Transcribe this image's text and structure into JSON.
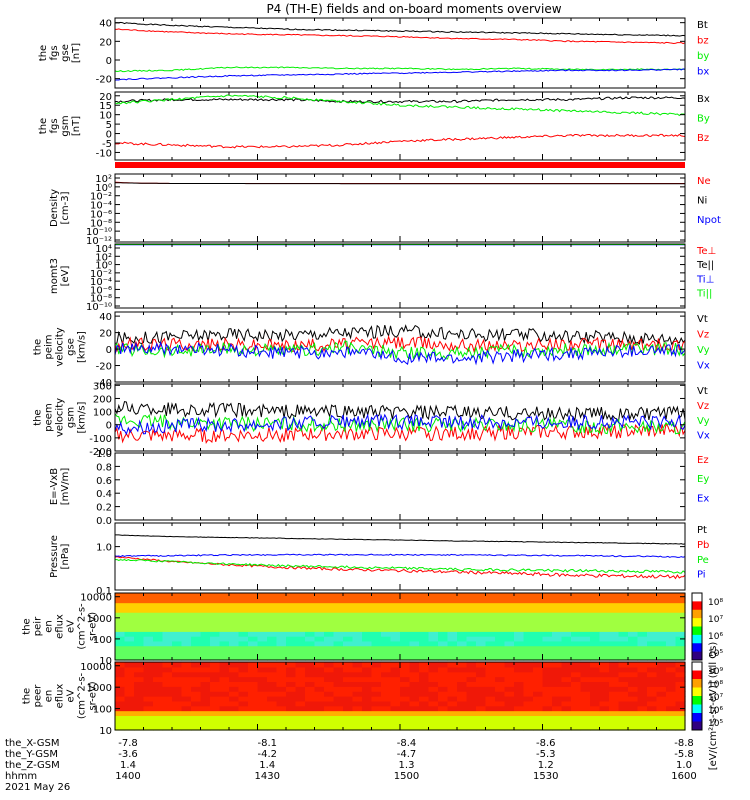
{
  "title": "P4 (TH-E) fields and on-board moments overview",
  "colors": {
    "black": "#000000",
    "red": "#ff0000",
    "green": "#00ee00",
    "blue": "#0000ff"
  },
  "chart_data": [
    {
      "id": "fgs_gse",
      "type": "line",
      "ylabel": [
        "the",
        "fgs",
        "gse",
        "[nT]"
      ],
      "ylim": [
        -30,
        45
      ],
      "yticks": [
        "40",
        "20",
        "0",
        "-20"
      ],
      "series": [
        {
          "name": "Bt",
          "color": "#000000",
          "x": [
            0,
            0.1,
            0.2,
            0.3,
            0.4,
            0.5,
            0.6,
            0.7,
            0.8,
            0.9,
            1
          ],
          "y": [
            40,
            37,
            35,
            33,
            32,
            31,
            30,
            29,
            28,
            27,
            26
          ]
        },
        {
          "name": "bz",
          "color": "#ff0000",
          "x": [
            0,
            0.1,
            0.2,
            0.3,
            0.4,
            0.5,
            0.6,
            0.7,
            0.8,
            0.9,
            1
          ],
          "y": [
            33,
            30,
            28,
            27,
            26,
            25,
            23,
            22,
            20,
            19,
            18
          ]
        },
        {
          "name": "by",
          "color": "#00ee00",
          "x": [
            0,
            0.1,
            0.2,
            0.3,
            0.4,
            0.5,
            0.6,
            0.7,
            0.8,
            0.9,
            1
          ],
          "y": [
            -12,
            -11,
            -8,
            -8,
            -9,
            -9,
            -10,
            -9,
            -10,
            -10,
            -10
          ]
        },
        {
          "name": "bx",
          "color": "#0000ff",
          "x": [
            0,
            0.1,
            0.2,
            0.3,
            0.4,
            0.5,
            0.6,
            0.7,
            0.8,
            0.9,
            1
          ],
          "y": [
            -21,
            -19,
            -17,
            -16,
            -15,
            -14,
            -13,
            -12,
            -11,
            -11,
            -10
          ]
        }
      ]
    },
    {
      "id": "fgs_gsm",
      "type": "line",
      "ylabel": [
        "the",
        "fgs",
        "gsm",
        "[nT]"
      ],
      "ylim": [
        -14,
        22
      ],
      "yticks": [
        "20",
        "15",
        "10",
        "5",
        "0",
        "-5",
        "-10"
      ],
      "series": [
        {
          "name": "Bx",
          "color": "#000000",
          "x": [
            0,
            0.1,
            0.2,
            0.3,
            0.4,
            0.5,
            0.6,
            0.7,
            0.8,
            0.9,
            1
          ],
          "y": [
            17,
            18,
            18,
            18,
            17,
            17,
            17,
            18,
            18,
            19,
            19
          ]
        },
        {
          "name": "By",
          "color": "#00ee00",
          "x": [
            0,
            0.1,
            0.2,
            0.3,
            0.4,
            0.5,
            0.6,
            0.7,
            0.8,
            0.9,
            1
          ],
          "y": [
            16,
            18,
            20,
            19,
            17,
            15,
            14,
            13,
            12,
            11,
            10
          ]
        },
        {
          "name": "Bz",
          "color": "#ff0000",
          "x": [
            0,
            0.1,
            0.2,
            0.3,
            0.4,
            0.5,
            0.6,
            0.7,
            0.8,
            0.9,
            1
          ],
          "y": [
            -5,
            -6,
            -7,
            -7,
            -6,
            -4,
            -3,
            -2,
            -1,
            -1,
            -1
          ]
        }
      ]
    },
    {
      "id": "density",
      "type": "line",
      "ylabel": [
        "Density",
        "[cm-3]"
      ],
      "ylim": [
        -12,
        2
      ],
      "yticks": [
        "10²",
        "10⁰",
        "10⁻²",
        "10⁻⁴",
        "10⁻⁶",
        "10⁻⁸",
        "10⁻¹⁰",
        "10⁻¹²"
      ],
      "series": [
        {
          "name": "Ne",
          "color": "#ff0000",
          "x": [
            0,
            0.02,
            0.05,
            0.1,
            0.5,
            1
          ],
          "y": [
            0.3,
            0.2,
            0.1,
            0.05,
            0.05,
            0.05
          ]
        },
        {
          "name": "Ni",
          "color": "#000000",
          "x": [
            0,
            0.05,
            0.1,
            0.5,
            1
          ],
          "y": [
            0.2,
            0.1,
            0.05,
            0,
            0
          ]
        },
        {
          "name": "Npot",
          "color": "#0000ff",
          "x": [
            0,
            1
          ],
          "y": [
            -12,
            -12
          ]
        }
      ]
    },
    {
      "id": "temperature",
      "type": "line",
      "ylabel": [
        "momt3",
        "[eV]"
      ],
      "ylim": [
        -10,
        4
      ],
      "yticks": [
        "10⁴",
        "10²",
        "10⁰",
        "10⁻²",
        "10⁻⁴",
        "10⁻⁶",
        "10⁻⁸",
        "10⁻¹⁰"
      ],
      "series": [
        {
          "name": "Te⊥",
          "color": "#ff0000",
          "x": [
            0,
            1
          ],
          "y": [
            3.9,
            3.9
          ]
        },
        {
          "name": "Te||",
          "color": "#000000",
          "x": [
            0,
            1
          ],
          "y": [
            3.95,
            3.95
          ]
        },
        {
          "name": "Ti⊥",
          "color": "#0000ff",
          "x": [
            0,
            1
          ],
          "y": [
            3.85,
            3.85
          ]
        },
        {
          "name": "Ti||",
          "color": "#00ee00",
          "x": [
            0,
            1
          ],
          "y": [
            3.9,
            3.9
          ]
        }
      ]
    },
    {
      "id": "peim_gse",
      "type": "line",
      "ylabel": [
        "the",
        "peim",
        "velocity",
        "gse",
        "[km/s]"
      ],
      "ylim": [
        -40,
        45
      ],
      "yticks": [
        "40",
        "20",
        "0",
        "-20",
        "-40"
      ],
      "series": [
        {
          "name": "Vt",
          "color": "#000000",
          "x": [
            0,
            0.1,
            0.2,
            0.3,
            0.4,
            0.5,
            0.6,
            0.7,
            0.8,
            0.9,
            1
          ],
          "y": [
            12,
            15,
            18,
            17,
            20,
            22,
            18,
            17,
            16,
            14,
            12
          ]
        },
        {
          "name": "Vz",
          "color": "#ff0000",
          "x": [
            0,
            0.1,
            0.2,
            0.3,
            0.4,
            0.5,
            0.6,
            0.7,
            0.8,
            0.9,
            1
          ],
          "y": [
            5,
            6,
            5,
            4,
            6,
            8,
            5,
            4,
            6,
            5,
            5
          ]
        },
        {
          "name": "Vy",
          "color": "#00ee00",
          "x": [
            0,
            0.1,
            0.2,
            0.3,
            0.4,
            0.5,
            0.6,
            0.7,
            0.8,
            0.9,
            1
          ],
          "y": [
            0,
            -2,
            0,
            -3,
            2,
            -5,
            -4,
            -2,
            -1,
            0,
            0
          ]
        },
        {
          "name": "Vx",
          "color": "#0000ff",
          "x": [
            0,
            0.1,
            0.2,
            0.3,
            0.4,
            0.5,
            0.6,
            0.7,
            0.8,
            0.9,
            1
          ],
          "y": [
            0,
            0,
            -2,
            -5,
            -3,
            -10,
            -12,
            -8,
            -5,
            -3,
            -2
          ]
        }
      ]
    },
    {
      "id": "peem_gsm",
      "type": "line",
      "ylabel": [
        "the",
        "peem",
        "velocity",
        "gsm",
        "[km/s]"
      ],
      "ylim": [
        -200,
        310
      ],
      "yticks": [
        "300",
        "200",
        "100",
        "0",
        "-100",
        "-200"
      ],
      "series": [
        {
          "name": "Vt",
          "color": "#000000",
          "x": [
            0,
            0.1,
            0.2,
            0.3,
            0.4,
            0.5,
            0.6,
            0.7,
            0.8,
            0.9,
            1
          ],
          "y": [
            130,
            120,
            110,
            100,
            100,
            90,
            90,
            85,
            85,
            80,
            80
          ]
        },
        {
          "name": "Vz",
          "color": "#ff0000",
          "x": [
            0,
            0.1,
            0.2,
            0.3,
            0.4,
            0.5,
            0.6,
            0.7,
            0.8,
            0.9,
            1
          ],
          "y": [
            -80,
            -85,
            -80,
            -75,
            -70,
            -70,
            -65,
            -60,
            -55,
            -50,
            -45
          ]
        },
        {
          "name": "Vy",
          "color": "#00ee00",
          "x": [
            0,
            0.1,
            0.2,
            0.3,
            0.4,
            0.5,
            0.6,
            0.7,
            0.8,
            0.9,
            1
          ],
          "y": [
            30,
            20,
            10,
            5,
            0,
            0,
            0,
            -5,
            -10,
            -15,
            -20
          ]
        },
        {
          "name": "Vx",
          "color": "#0000ff",
          "x": [
            0,
            0.1,
            0.2,
            0.3,
            0.4,
            0.5,
            0.6,
            0.7,
            0.8,
            0.9,
            1
          ],
          "y": [
            -20,
            -10,
            0,
            10,
            20,
            20,
            20,
            20,
            20,
            20,
            20
          ]
        }
      ]
    },
    {
      "id": "efield",
      "type": "line",
      "ylabel": [
        "E=-VxB",
        "[mV/m]"
      ],
      "ylim": [
        0,
        1
      ],
      "yticks": [
        "1.0",
        "0.8",
        "0.6",
        "0.4",
        "0.2",
        "0.0"
      ],
      "series": [
        {
          "name": "Ez",
          "color": "#ff0000",
          "x": [],
          "y": []
        },
        {
          "name": "Ey",
          "color": "#00ee00",
          "x": [],
          "y": []
        },
        {
          "name": "Ex",
          "color": "#0000ff",
          "x": [],
          "y": []
        }
      ]
    },
    {
      "id": "pressure",
      "type": "line",
      "ylabel": [
        "Pressure",
        "[nPa]"
      ],
      "ylim": [
        0.1,
        3.5
      ],
      "yscale": "log",
      "yticks": [
        "1.0",
        "0.1"
      ],
      "series": [
        {
          "name": "Pt",
          "color": "#000000",
          "x": [
            0,
            0.1,
            0.2,
            0.3,
            0.4,
            0.5,
            0.6,
            0.7,
            0.8,
            0.9,
            1
          ],
          "y": [
            1.85,
            1.7,
            1.62,
            1.55,
            1.48,
            1.42,
            1.35,
            1.3,
            1.25,
            1.2,
            1.15
          ]
        },
        {
          "name": "Pb",
          "color": "#ff0000",
          "x": [
            0,
            0.1,
            0.2,
            0.3,
            0.4,
            0.5,
            0.6,
            0.7,
            0.8,
            0.9,
            1
          ],
          "y": [
            0.58,
            0.45,
            0.38,
            0.33,
            0.3,
            0.28,
            0.26,
            0.24,
            0.22,
            0.21,
            0.2
          ]
        },
        {
          "name": "Pe",
          "color": "#00ee00",
          "x": [
            0,
            0.1,
            0.2,
            0.3,
            0.4,
            0.5,
            0.6,
            0.7,
            0.8,
            0.9,
            1
          ],
          "y": [
            0.5,
            0.45,
            0.4,
            0.36,
            0.34,
            0.32,
            0.3,
            0.29,
            0.28,
            0.27,
            0.26
          ]
        },
        {
          "name": "Pi",
          "color": "#0000ff",
          "x": [
            0,
            0.1,
            0.2,
            0.3,
            0.4,
            0.5,
            0.6,
            0.7,
            0.8,
            0.9,
            1
          ],
          "y": [
            0.6,
            0.62,
            0.64,
            0.65,
            0.65,
            0.65,
            0.64,
            0.63,
            0.62,
            0.6,
            0.58
          ]
        }
      ]
    },
    {
      "id": "peir_spec",
      "type": "heatmap",
      "ylabel": [
        "the",
        "peir",
        "en",
        "eflux",
        "eV",
        "(cm^2-s-",
        "sr-eV)"
      ],
      "ylim": [
        10,
        15000
      ],
      "yscale": "log",
      "yticks": [
        "10000",
        "1000",
        "100",
        "10"
      ],
      "colorbar": {
        "ticks": [
          "10⁸",
          "10⁷",
          "10⁶",
          "10⁵"
        ]
      }
    },
    {
      "id": "peer_spec",
      "type": "heatmap",
      "ylabel": [
        "the",
        "peer",
        "en",
        "eflux",
        "eV",
        "(cm^2-s-",
        "sr-eV)"
      ],
      "ylim": [
        10,
        15000
      ],
      "yscale": "log",
      "yticks": [
        "10000",
        "1000",
        "100",
        "10"
      ],
      "colorbar": {
        "ticks": [
          "10⁹",
          "10⁸",
          "10⁷",
          "10⁶",
          "10⁵"
        ]
      }
    }
  ],
  "colorbar_label": "[eV/(cm²-s-sr-eV)] (All Qs)",
  "time_axis": {
    "rows": [
      {
        "label": "the_X-GSM",
        "values": [
          "-7.8",
          "-8.1",
          "-8.4",
          "-8.6",
          "-8.8"
        ]
      },
      {
        "label": "the_Y-GSM",
        "values": [
          "-3.6",
          "-4.2",
          "-4.7",
          "-5.3",
          "-5.8"
        ]
      },
      {
        "label": "the_Z-GSM",
        "values": [
          "1.4",
          "1.4",
          "1.3",
          "1.2",
          "1.0"
        ]
      },
      {
        "label": "hhmm",
        "values": [
          "1400",
          "1430",
          "1500",
          "1530",
          "1600"
        ]
      }
    ],
    "date": "2021 May 26"
  }
}
